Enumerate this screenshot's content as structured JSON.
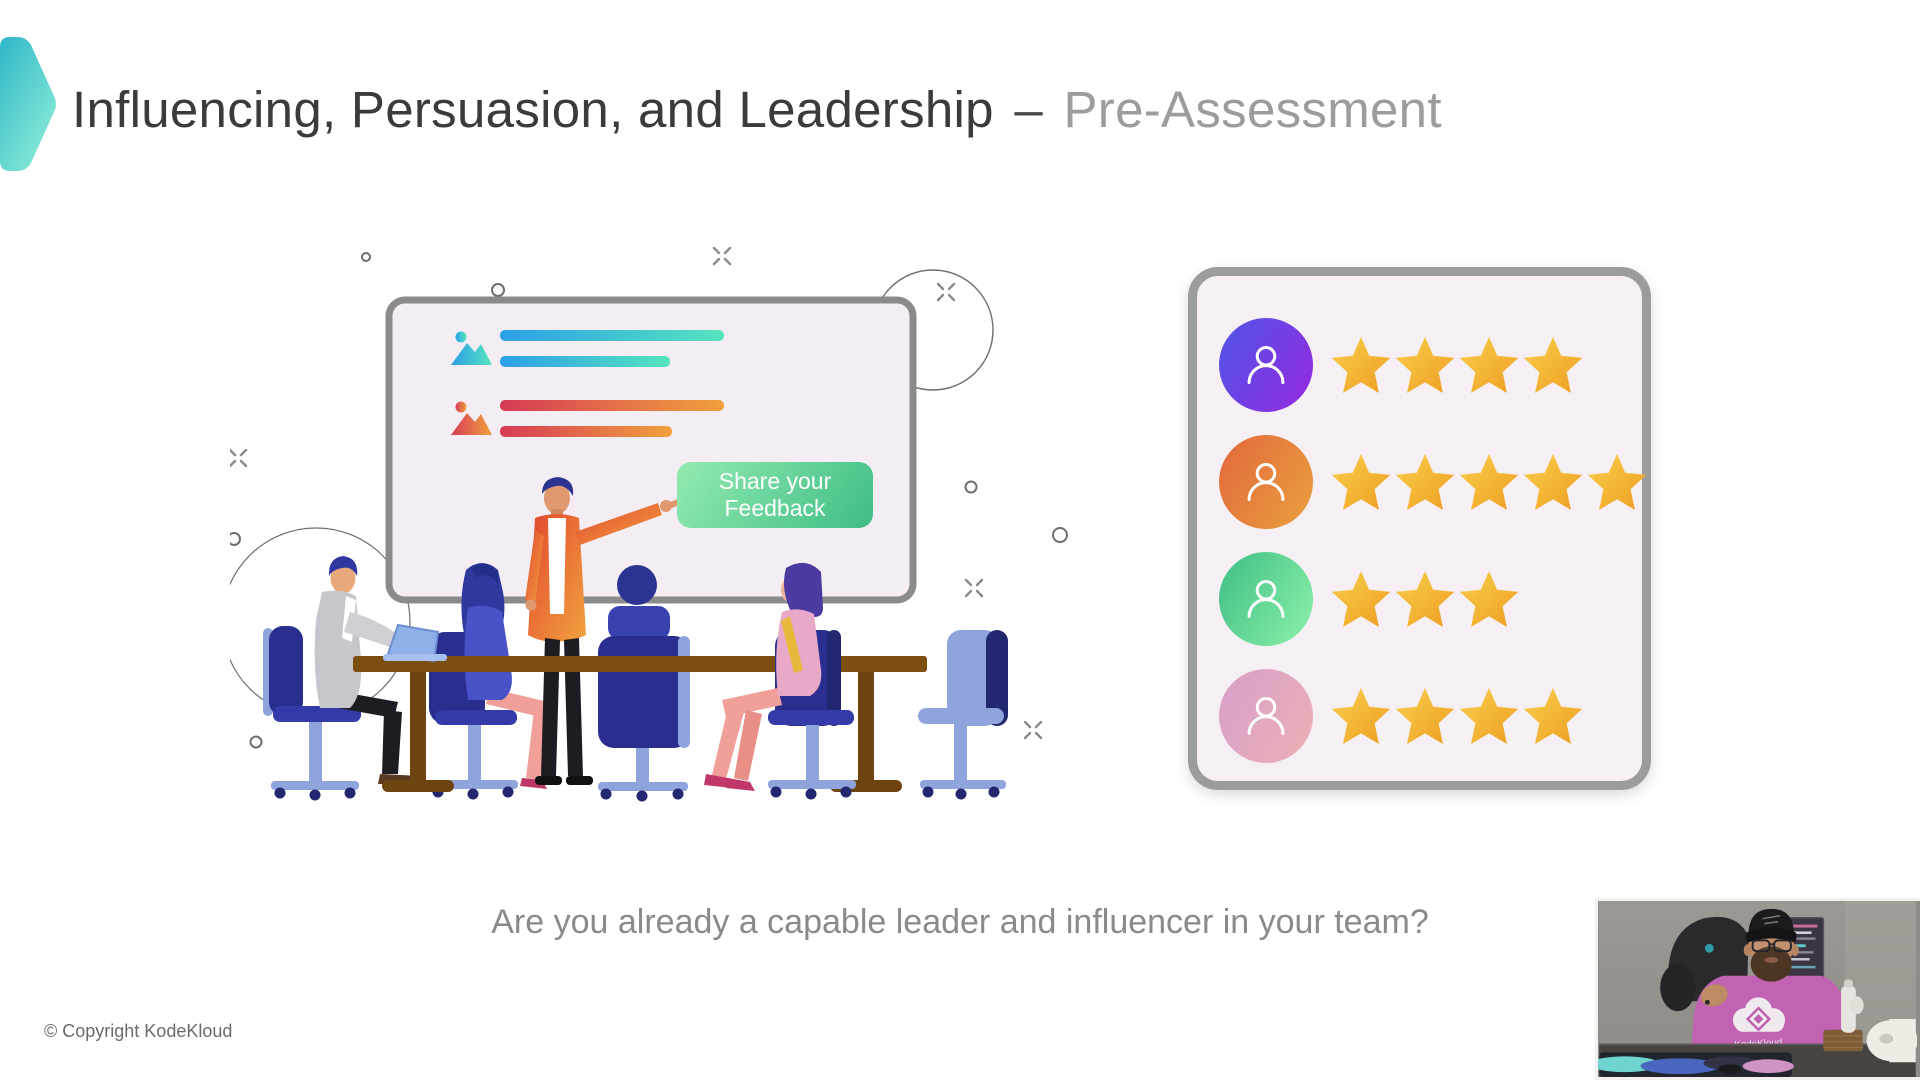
{
  "slide": {
    "title": {
      "main": "Influencing, Persuasion, and Leadership",
      "separator": "–",
      "highlight": "Pre-Assessment"
    },
    "question": "Are you already a capable leader and influencer in your team?",
    "footer": "© Copyright KodeKloud"
  },
  "illustration": {
    "feedback_button_label": "Share your Feedback"
  },
  "rating_panel": {
    "max_stars": 5,
    "star_color_start": "#F9CF4A",
    "star_color_end": "#EE9D22",
    "rows": [
      {
        "avatar": "purple-user-avatar",
        "gradient": [
          "#4E55E8",
          "#9729E0"
        ],
        "stars": 4
      },
      {
        "avatar": "orange-user-avatar",
        "gradient": [
          "#E2683C",
          "#E9A03E"
        ],
        "stars": 5
      },
      {
        "avatar": "green-user-avatar",
        "gradient": [
          "#3FBE86",
          "#8CF2A9"
        ],
        "stars": 3
      },
      {
        "avatar": "pink-user-avatar",
        "gradient": [
          "#D89FCB",
          "#ECB0B4"
        ],
        "stars": 4
      }
    ]
  },
  "webcam": {
    "shirt_logo_text": "KodeKloud"
  },
  "colors": {
    "accent_teal_start": "#2FB6C8",
    "accent_teal_end": "#8CEDD7",
    "button_green_start": "#93EBB1",
    "button_green_end": "#3EBD85",
    "panel_border": "#9C9C9C",
    "table_brown": "#7C4E10",
    "chair_navy": "#2A2E8F",
    "chair_light_blue": "#8FA3DC"
  }
}
